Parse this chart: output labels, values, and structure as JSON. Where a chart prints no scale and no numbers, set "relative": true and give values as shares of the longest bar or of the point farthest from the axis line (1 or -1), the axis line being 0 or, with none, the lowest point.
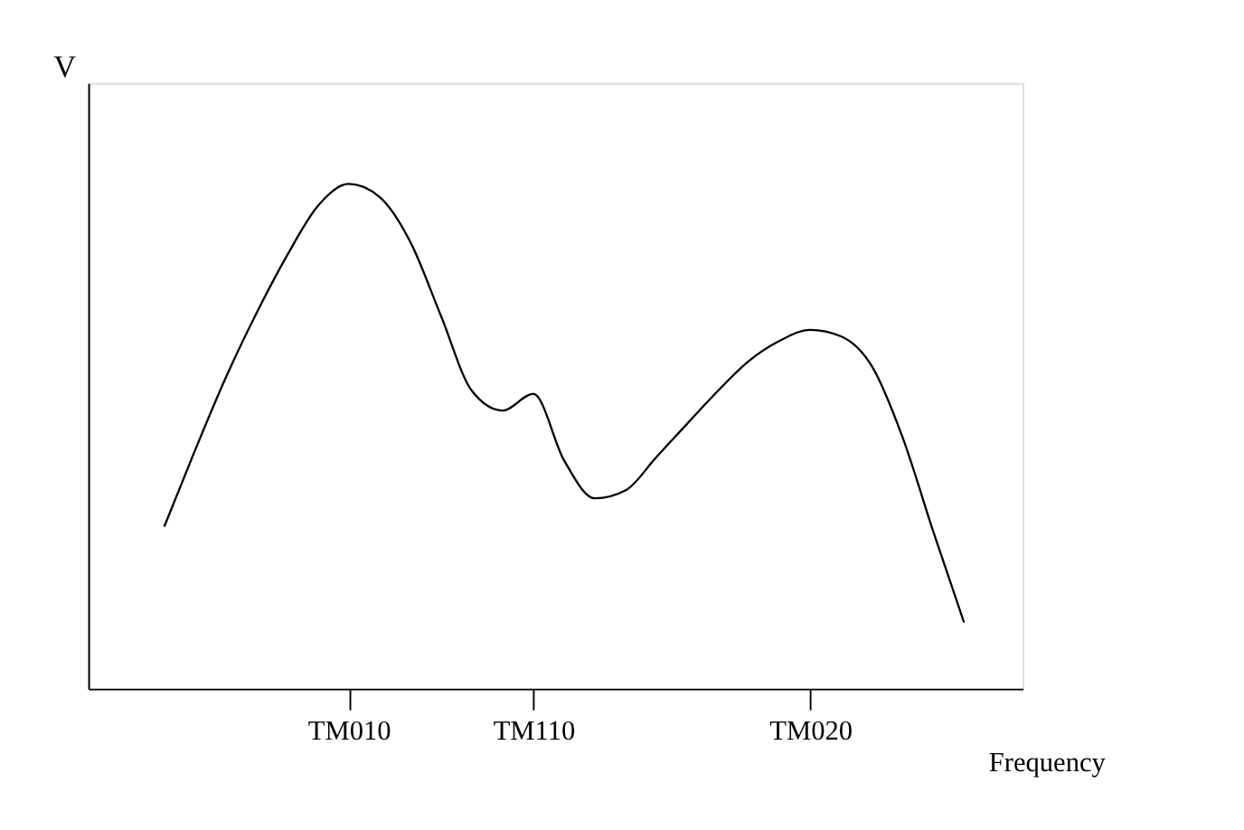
{
  "chart_data": {
    "type": "line",
    "relative": true,
    "xlabel": "Frequency",
    "ylabel": "V",
    "categories": [
      null,
      null,
      null,
      null,
      null,
      null,
      "TM010",
      null,
      null,
      null,
      null,
      null,
      "TM110",
      null,
      null,
      null,
      null,
      null,
      null,
      null,
      null,
      "TM020",
      null,
      null,
      null,
      null,
      null
    ],
    "series": [
      {
        "color": "#000000",
        "values": [
          0.321,
          0.472,
          0.616,
          0.744,
          0.859,
          0.957,
          1,
          0.974,
          0.885,
          0.738,
          0.59,
          0.551,
          0.584,
          0.452,
          0.377,
          0.393,
          0.459,
          0.525,
          0.59,
          0.649,
          0.689,
          0.711,
          0.698,
          0.639,
          0.498,
          0.311,
          0.131
        ]
      }
    ],
    "grid": false,
    "marker": "none",
    "line_style": "solid"
  }
}
